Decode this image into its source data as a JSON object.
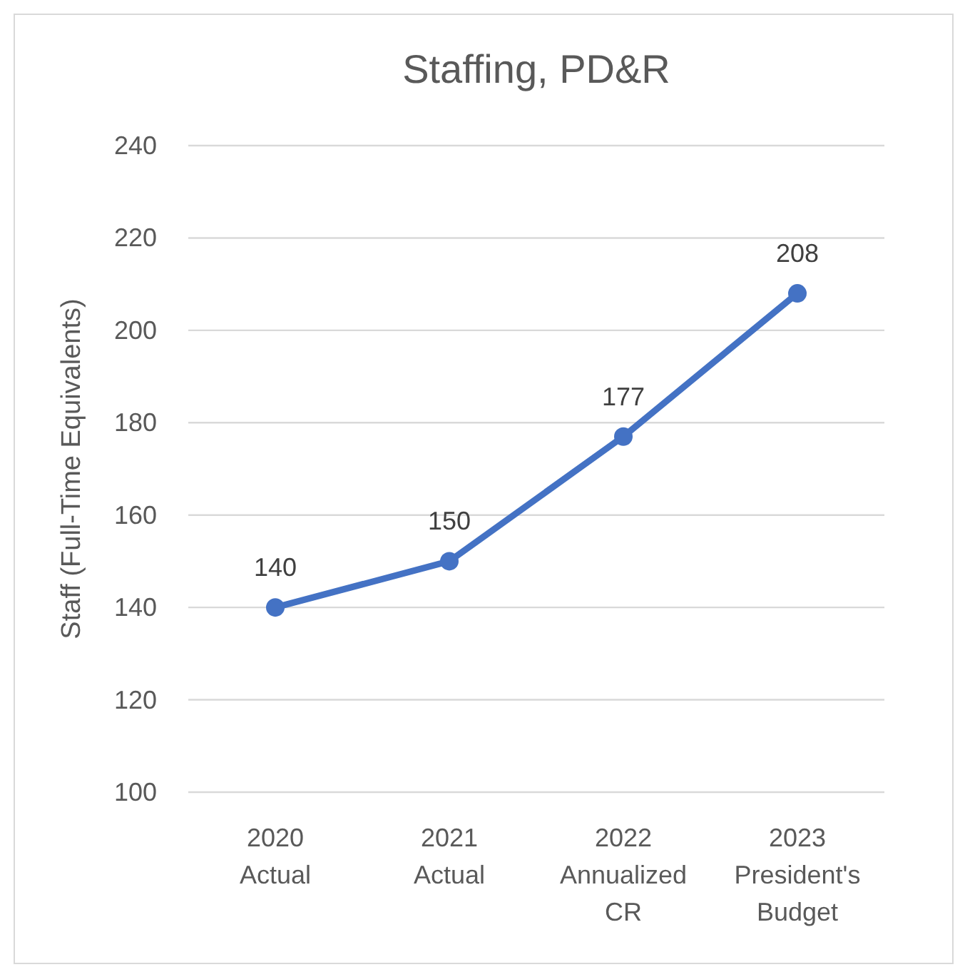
{
  "chart_data": {
    "type": "line",
    "title": "Staffing, PD&R",
    "ylabel": "Staff (Full-Time Equivalents)",
    "categories": [
      "2020 Actual",
      "2021 Actual",
      "2022 Annualized CR",
      "2023 President's Budget"
    ],
    "series": [
      {
        "color": "#4472c4",
        "values": [
          140,
          150,
          177,
          208
        ]
      }
    ],
    "ylim": [
      100,
      240
    ],
    "yticks": [
      100,
      120,
      140,
      160,
      180,
      200,
      220,
      240
    ],
    "grid": "y",
    "marker": "circle",
    "line_style": "solid",
    "data_labels": true
  }
}
